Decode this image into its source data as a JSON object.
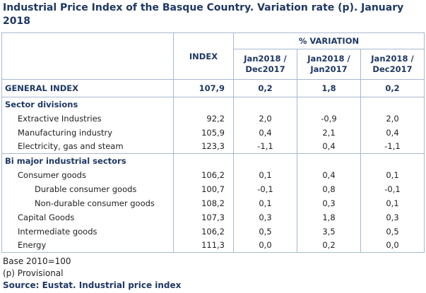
{
  "title": "Industrial Price Index of the Basque Country. Variation rate (p). January 2018",
  "table": {
    "header": {
      "index": "INDEX",
      "variation": "% VARIATION",
      "columns": [
        [
          "Jan2018 /",
          "Dec2017"
        ],
        [
          "Jan2018 /",
          "Jan2017"
        ],
        [
          "Jan2018 /",
          "Dec2017"
        ]
      ]
    },
    "rows": [
      [
        "GENERAL INDEX",
        "107,9",
        "0,2",
        "1,8",
        "0,2"
      ],
      [
        "Sector divisions"
      ],
      [
        "Extractive Industries",
        "92,2",
        "2,0",
        "-0,9",
        "2,0"
      ],
      [
        "Manufacturing industry",
        "105,9",
        "0,4",
        "2,1",
        "0,4"
      ],
      [
        "Electricity, gas and steam",
        "123,3",
        "-1,1",
        "0,4",
        "-1,1"
      ],
      [
        "Bi major industrial sectors"
      ],
      [
        "Consumer goods",
        "106,2",
        "0,1",
        "0,4",
        "0,1"
      ],
      [
        "Durable consumer goods",
        "100,7",
        "-0,1",
        "0,8",
        "-0,1"
      ],
      [
        "Non-durable consumer goods",
        "108,2",
        "0,1",
        "0,3",
        "0,1"
      ],
      [
        "Capital Goods",
        "107,3",
        "0,3",
        "1,8",
        "0,3"
      ],
      [
        "Intermediate goods",
        "106,2",
        "0,5",
        "3,5",
        "0,5"
      ],
      [
        "Energy",
        "111,3",
        "0,0",
        "0,2",
        "0,0"
      ]
    ]
  },
  "notes": [
    "Base 2010=100",
    "(p) Provisional"
  ],
  "source": "Source: Eustat. Industrial price index"
}
